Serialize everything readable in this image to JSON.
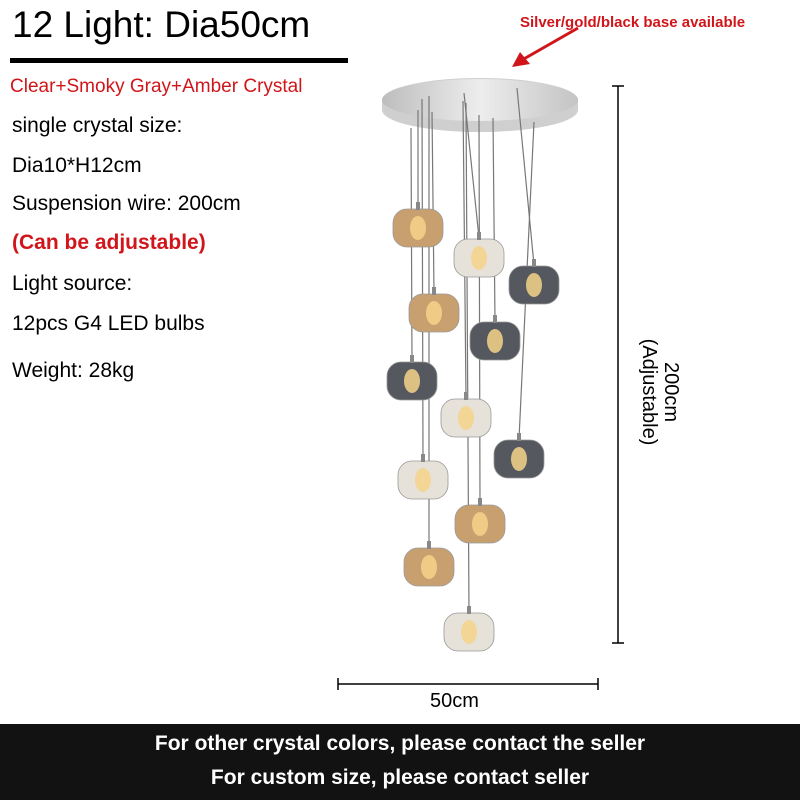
{
  "title": "12 Light: Dia50cm",
  "crystal_type": "Clear+Smoky Gray+Amber Crystal",
  "specs": [
    "single crystal size:",
    "Dia10*H12cm",
    "Suspension wire: 200cm",
    "(Can be adjustable)",
    "Light source:",
    "12pcs G4 LED bulbs",
    "Weight: 28kg"
  ],
  "base_note": "Silver/gold/black base available",
  "dimensions": {
    "height_value": "200cm",
    "height_note": "(Adjustable)",
    "width": "50cm"
  },
  "banner": [
    "For other crystal colors, please contact the seller",
    "For custom size, please contact seller"
  ],
  "colors": {
    "accent_red": "#d0161a",
    "amber": "#c8a070",
    "smoky": "#55585e",
    "clear": "#e6e2da",
    "banner": "#121212"
  },
  "crystals": [
    "amber",
    "clear",
    "smoky",
    "amber",
    "smoky",
    "smoky",
    "clear",
    "smoky",
    "clear",
    "amber",
    "amber",
    "clear"
  ]
}
